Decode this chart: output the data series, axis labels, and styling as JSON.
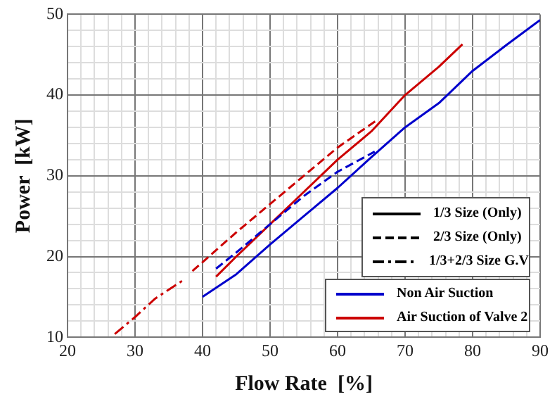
{
  "chart_data": {
    "type": "line",
    "xlabel": "Flow Rate  [%]",
    "ylabel": "Power  [kW]",
    "xlim": [
      20,
      90
    ],
    "ylim": [
      10,
      50
    ],
    "xticks": [
      20,
      {
        "value": 22,
        "label": null
      },
      {
        "value": 24,
        "label": null
      },
      {
        "value": 26,
        "label": null
      },
      {
        "value": 28,
        "label": null
      },
      30,
      {
        "value": 32,
        "label": null
      },
      {
        "value": 34,
        "label": null
      },
      {
        "value": 36,
        "label": null
      },
      {
        "value": 38,
        "label": null
      },
      40,
      {
        "value": 42,
        "label": null
      },
      {
        "value": 44,
        "label": null
      },
      {
        "value": 46,
        "label": null
      },
      {
        "value": 48,
        "label": null
      },
      50,
      {
        "value": 52,
        "label": null
      },
      {
        "value": 54,
        "label": null
      },
      {
        "value": 56,
        "label": null
      },
      {
        "value": 58,
        "label": null
      },
      60,
      {
        "value": 62,
        "label": null
      },
      {
        "value": 64,
        "label": null
      },
      {
        "value": 66,
        "label": null
      },
      {
        "value": 68,
        "label": null
      },
      70,
      {
        "value": 72,
        "label": null
      },
      {
        "value": 74,
        "label": null
      },
      {
        "value": 76,
        "label": null
      },
      {
        "value": 78,
        "label": null
      },
      80,
      {
        "value": 82,
        "label": null
      },
      {
        "value": 84,
        "label": null
      },
      {
        "value": 86,
        "label": null
      },
      {
        "value": 88,
        "label": null
      },
      90
    ],
    "yticks": [
      10,
      {
        "value": 12,
        "label": null
      },
      {
        "value": 14,
        "label": null
      },
      {
        "value": 16,
        "label": null
      },
      {
        "value": 18,
        "label": null
      },
      20,
      {
        "value": 22,
        "label": null
      },
      {
        "value": 24,
        "label": null
      },
      {
        "value": 26,
        "label": null
      },
      {
        "value": 28,
        "label": null
      },
      30,
      {
        "value": 32,
        "label": null
      },
      {
        "value": 34,
        "label": null
      },
      {
        "value": 36,
        "label": null
      },
      {
        "value": 38,
        "label": null
      },
      40,
      {
        "value": 42,
        "label": null
      },
      {
        "value": 44,
        "label": null
      },
      {
        "value": 46,
        "label": null
      },
      {
        "value": 48,
        "label": null
      },
      50
    ],
    "grid": true,
    "marker": "none",
    "series": [
      {
        "color": "#0000cc",
        "line_style": "solid",
        "x": [
          40,
          45,
          50,
          55,
          60,
          65,
          70,
          75,
          80,
          85,
          90
        ],
        "values": [
          15,
          17.8,
          21.5,
          25,
          28.5,
          32.3,
          36,
          39,
          43,
          46.2,
          49.3
        ]
      },
      {
        "color": "#0000cc",
        "line_style": "dashed",
        "x": [
          42,
          45,
          50,
          55,
          60,
          65.5
        ],
        "values": [
          18.5,
          20.5,
          24,
          27.5,
          30.5,
          33
        ]
      },
      {
        "color": "#cc0000",
        "line_style": "solid",
        "x": [
          42,
          45,
          50,
          55,
          60,
          65,
          70,
          75,
          78.5
        ],
        "values": [
          17.5,
          20,
          24,
          28,
          32,
          35.5,
          40,
          43.5,
          46.3
        ]
      },
      {
        "color": "#cc0000",
        "line_style": "dashed",
        "x": [
          38.5,
          40,
          45,
          50,
          55,
          60,
          66
        ],
        "values": [
          18.2,
          19.3,
          23,
          26.5,
          30,
          33.5,
          37
        ]
      },
      {
        "color": "#cc0000",
        "line_style": "dashdot",
        "x": [
          27,
          30,
          33,
          37
        ],
        "values": [
          10.4,
          12.5,
          14.8,
          17
        ]
      }
    ],
    "annotations": [
      "1/3 Size (Only)",
      "2/3 Size (Only)",
      "1/3+2/3 Size G.V",
      "Non Air Suction",
      "Air Suction of Valve 2"
    ]
  }
}
